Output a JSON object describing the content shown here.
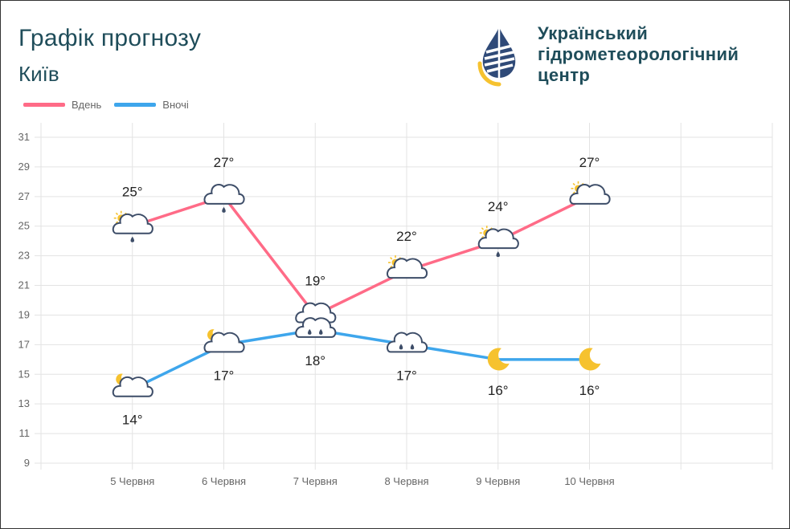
{
  "header": {
    "title": "Графік прогнозу",
    "city": "Київ"
  },
  "organization": {
    "name_line1": "Український",
    "name_line2": "гідрометеорологічний",
    "name_line3": "центр"
  },
  "legend": {
    "day_label": "Вдень",
    "night_label": "Вночі"
  },
  "colors": {
    "day": "#ff6b87",
    "night": "#3ea6ec",
    "brand_blue": "#2f4a78",
    "brand_yellow": "#f6c22f",
    "title": "#1f4d5a"
  },
  "chart_data": {
    "type": "line",
    "categories": [
      "5 Червня",
      "6 Червня",
      "7 Червня",
      "8 Червня",
      "9 Червня",
      "10 Червня"
    ],
    "y_ticks": [
      9,
      11,
      13,
      15,
      17,
      19,
      21,
      23,
      25,
      27,
      29,
      31
    ],
    "ylim": [
      9,
      31
    ],
    "grid": true,
    "legend_position": "top-left",
    "series": [
      {
        "name": "Вдень",
        "values": [
          25,
          27,
          19,
          22,
          24,
          27
        ],
        "labels": [
          "25°",
          "27°",
          "19°",
          "22°",
          "24°",
          "27°"
        ],
        "icons": [
          "sun-cloud-rain-icon",
          "cloud-rain-icon",
          "cloud-rain-icon",
          "sun-cloud-icon",
          "sun-cloud-rain-icon",
          "sun-cloud-icon"
        ]
      },
      {
        "name": "Вночі",
        "values": [
          14,
          17,
          18,
          17,
          16,
          16
        ],
        "labels": [
          "14°",
          "17°",
          "18°",
          "17°",
          "16°",
          "16°"
        ],
        "icons": [
          "moon-cloud-icon",
          "moon-cloud-icon",
          "cloud-heavy-rain-icon",
          "cloud-heavy-rain-icon",
          "moon-icon",
          "moon-icon"
        ]
      }
    ]
  }
}
